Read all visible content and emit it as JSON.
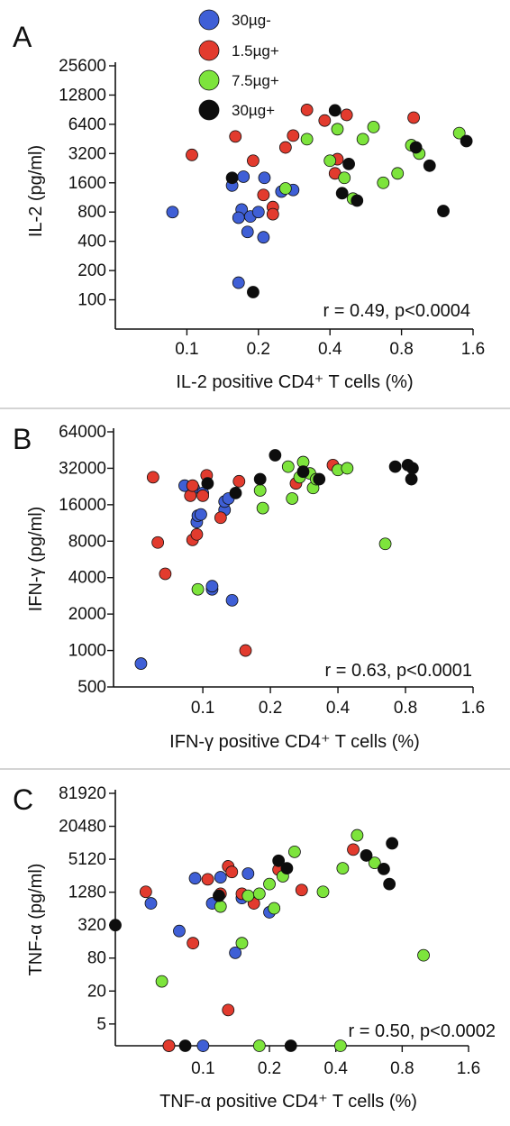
{
  "legend": [
    {
      "label": "30µg-",
      "color": "#3f5fd6"
    },
    {
      "label": "1.5µg+",
      "color": "#e23b2e"
    },
    {
      "label": "7.5µg+",
      "color": "#7de43c"
    },
    {
      "label": "30µg+",
      "color": "#0d0d0d"
    }
  ],
  "chart_data": [
    {
      "panel": "A",
      "type": "scatter",
      "xlabel": "IL-2 positive CD4⁺ T cells (%)",
      "ylabel": "IL-2 (pg/ml)",
      "annotation": "r = 0.49, p<0.0004",
      "x_scale": "log",
      "y_scale": "log",
      "xlim": [
        0.05,
        1.6
      ],
      "ylim": [
        50,
        25600
      ],
      "x_ticks": [
        0.1,
        0.2,
        0.4,
        0.8,
        1.6
      ],
      "x_tick_labels": [
        "0.1",
        "0.2",
        "0.4",
        "0.8",
        "1.6"
      ],
      "y_ticks": [
        100,
        200,
        400,
        800,
        1600,
        3200,
        6400,
        12800,
        25600
      ],
      "y_tick_labels": [
        "100",
        "200",
        "400",
        "800",
        "1600",
        "3200",
        "6400",
        "12800",
        "25600"
      ],
      "series": [
        {
          "name": "30µg-",
          "points": [
            [
              0.087,
              800
            ],
            [
              0.155,
              1500
            ],
            [
              0.165,
              150
            ],
            [
              0.17,
              850
            ],
            [
              0.165,
              700
            ],
            [
              0.173,
              1850
            ],
            [
              0.18,
              500
            ],
            [
              0.185,
              720
            ],
            [
              0.2,
              800
            ],
            [
              0.21,
              440
            ],
            [
              0.212,
              1800
            ],
            [
              0.25,
              1300
            ],
            [
              0.28,
              1350
            ]
          ]
        },
        {
          "name": "1.5µg+",
          "points": [
            [
              0.105,
              3100
            ],
            [
              0.16,
              4800
            ],
            [
              0.19,
              2700
            ],
            [
              0.21,
              1200
            ],
            [
              0.23,
              900
            ],
            [
              0.23,
              760
            ],
            [
              0.26,
              3700
            ],
            [
              0.28,
              4900
            ],
            [
              0.32,
              9000
            ],
            [
              0.38,
              7000
            ],
            [
              0.42,
              2000
            ],
            [
              0.43,
              2800
            ],
            [
              0.47,
              8000
            ],
            [
              0.9,
              7500
            ]
          ]
        },
        {
          "name": "7.5µg+",
          "points": [
            [
              0.26,
              1400
            ],
            [
              0.32,
              4500
            ],
            [
              0.4,
              2700
            ],
            [
              0.43,
              5700
            ],
            [
              0.46,
              1800
            ],
            [
              0.5,
              1100
            ],
            [
              0.55,
              4500
            ],
            [
              0.61,
              6000
            ],
            [
              0.67,
              1600
            ],
            [
              0.77,
              2000
            ],
            [
              0.88,
              3900
            ],
            [
              0.95,
              3200
            ],
            [
              1.4,
              5200
            ]
          ]
        },
        {
          "name": "30µg+",
          "points": [
            [
              0.155,
              1800
            ],
            [
              0.19,
              120
            ],
            [
              0.42,
              8900
            ],
            [
              0.45,
              1250
            ],
            [
              0.48,
              2500
            ],
            [
              0.52,
              1050
            ],
            [
              0.92,
              3700
            ],
            [
              1.05,
              2400
            ],
            [
              1.2,
              820
            ],
            [
              1.5,
              4300
            ]
          ]
        }
      ]
    },
    {
      "panel": "B",
      "type": "scatter",
      "xlabel": "IFN-γ positive CD4⁺ T cells (%)",
      "ylabel": "IFN-γ (pg/ml)",
      "annotation": "r = 0.63, p<0.0001",
      "x_scale": "log",
      "y_scale": "log",
      "xlim": [
        0.04,
        1.6
      ],
      "ylim": [
        500,
        64000
      ],
      "x_ticks": [
        0.1,
        0.2,
        0.4,
        0.8,
        1.6
      ],
      "x_tick_labels": [
        "0.1",
        "0.2",
        "0.4",
        "0.8",
        "1.6"
      ],
      "y_ticks": [
        500,
        1000,
        2000,
        4000,
        8000,
        16000,
        32000,
        64000
      ],
      "y_tick_labels": [
        "500",
        "1000",
        "2000",
        "4000",
        "8000",
        "16000",
        "32000",
        "64000"
      ],
      "series": [
        {
          "name": "30µg-",
          "points": [
            [
              0.053,
              780
            ],
            [
              0.083,
              23000
            ],
            [
              0.091,
              22000
            ],
            [
              0.094,
              11500
            ],
            [
              0.095,
              13000
            ],
            [
              0.098,
              13300
            ],
            [
              0.1,
              20000
            ],
            [
              0.11,
              3200
            ],
            [
              0.11,
              3400
            ],
            [
              0.125,
              14500
            ],
            [
              0.125,
              17000
            ],
            [
              0.13,
              18000
            ],
            [
              0.135,
              2600
            ]
          ]
        },
        {
          "name": "1.5µg+",
          "points": [
            [
              0.06,
              27000
            ],
            [
              0.063,
              7800
            ],
            [
              0.068,
              4300
            ],
            [
              0.09,
              8200
            ],
            [
              0.088,
              19000
            ],
            [
              0.09,
              23000
            ],
            [
              0.094,
              9100
            ],
            [
              0.1,
              19000
            ],
            [
              0.104,
              28000
            ],
            [
              0.12,
              12500
            ],
            [
              0.145,
              25000
            ],
            [
              0.155,
              1000
            ],
            [
              0.26,
              24000
            ],
            [
              0.38,
              34000
            ]
          ]
        },
        {
          "name": "7.5µg+",
          "points": [
            [
              0.095,
              3200
            ],
            [
              0.18,
              21000
            ],
            [
              0.185,
              15000
            ],
            [
              0.24,
              33000
            ],
            [
              0.25,
              18000
            ],
            [
              0.27,
              27000
            ],
            [
              0.28,
              36000
            ],
            [
              0.3,
              29000
            ],
            [
              0.31,
              22000
            ],
            [
              0.32,
              26000
            ],
            [
              0.4,
              31000
            ],
            [
              0.44,
              32000
            ],
            [
              0.65,
              7600
            ]
          ]
        },
        {
          "name": "30µg+",
          "points": [
            [
              0.105,
              24000
            ],
            [
              0.14,
              20000
            ],
            [
              0.18,
              26000
            ],
            [
              0.21,
              41000
            ],
            [
              0.28,
              30000
            ],
            [
              0.33,
              26000
            ],
            [
              0.72,
              33000
            ],
            [
              0.82,
              34000
            ],
            [
              0.86,
              32000
            ],
            [
              0.85,
              26000
            ]
          ]
        }
      ]
    },
    {
      "panel": "C",
      "type": "scatter",
      "xlabel": "TNF-α positive CD4⁺ T cells (%)",
      "ylabel": "TNF-α (pg/ml)",
      "annotation": "r = 0.50, p<0.0002",
      "x_scale": "log",
      "y_scale": "log",
      "xlim": [
        0.04,
        1.6
      ],
      "ylim": [
        2,
        81920
      ],
      "x_ticks": [
        0.1,
        0.2,
        0.4,
        0.8,
        1.6
      ],
      "x_tick_labels": [
        "0.1",
        "0.2",
        "0.4",
        "0.8",
        "1.6"
      ],
      "y_ticks": [
        5,
        20,
        80,
        320,
        1280,
        5120,
        20480,
        81920
      ],
      "y_tick_labels": [
        "5",
        "20",
        "80",
        "320",
        "1280",
        "5120",
        "20480",
        "81920"
      ],
      "series": [
        {
          "name": "30µg-",
          "points": [
            [
              0.058,
              800
            ],
            [
              0.07,
              2
            ],
            [
              0.078,
              250
            ],
            [
              0.092,
              2300
            ],
            [
              0.1,
              2
            ],
            [
              0.11,
              800
            ],
            [
              0.12,
              2400
            ],
            [
              0.14,
              100
            ],
            [
              0.15,
              1000
            ],
            [
              0.16,
              2800
            ],
            [
              0.2,
              550
            ]
          ]
        },
        {
          "name": "1.5µg+",
          "points": [
            [
              0.055,
              1300
            ],
            [
              0.07,
              2
            ],
            [
              0.09,
              150
            ],
            [
              0.105,
              2200
            ],
            [
              0.12,
              1200
            ],
            [
              0.13,
              3800
            ],
            [
              0.13,
              9
            ],
            [
              0.135,
              3000
            ],
            [
              0.15,
              1200
            ],
            [
              0.17,
              800
            ],
            [
              0.22,
              3300
            ],
            [
              0.28,
              1400
            ],
            [
              0.48,
              7700
            ]
          ]
        },
        {
          "name": "7.5µg+",
          "points": [
            [
              0.065,
              30
            ],
            [
              0.12,
              700
            ],
            [
              0.15,
              150
            ],
            [
              0.16,
              1100
            ],
            [
              0.18,
              1200
            ],
            [
              0.18,
              2
            ],
            [
              0.2,
              1800
            ],
            [
              0.21,
              650
            ],
            [
              0.23,
              2500
            ],
            [
              0.26,
              7000
            ],
            [
              0.35,
              1300
            ],
            [
              0.42,
              2
            ],
            [
              0.43,
              3500
            ],
            [
              0.5,
              14000
            ],
            [
              0.6,
              4400
            ],
            [
              1.0,
              90
            ]
          ]
        },
        {
          "name": "30µg+",
          "points": [
            [
              0.04,
              320
            ],
            [
              0.083,
              2
            ],
            [
              0.118,
              1100
            ],
            [
              0.22,
              4800
            ],
            [
              0.24,
              3500
            ],
            [
              0.25,
              2
            ],
            [
              0.55,
              6000
            ],
            [
              0.66,
              3400
            ],
            [
              0.7,
              1800
            ],
            [
              0.72,
              10000
            ]
          ]
        }
      ]
    }
  ]
}
